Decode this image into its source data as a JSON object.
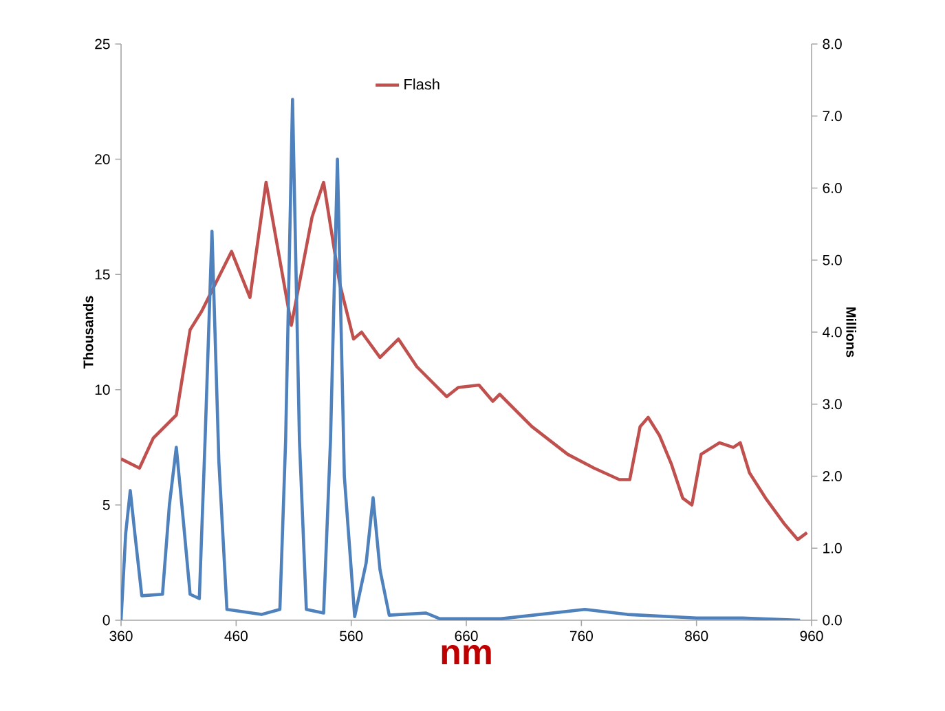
{
  "chart_data": {
    "type": "line",
    "xlabel": "nm",
    "ylabel": "Thousands",
    "y2label": "Millions",
    "xlim": [
      360,
      960
    ],
    "xticks": [
      360,
      460,
      560,
      660,
      760,
      860,
      960
    ],
    "ylim": [
      0,
      25
    ],
    "yticks": [
      0,
      5,
      10,
      15,
      20,
      25
    ],
    "y2lim": [
      0,
      8
    ],
    "y2ticks": [
      {
        "value": 0,
        "label": "0.0"
      },
      {
        "value": 1,
        "label": "1.0"
      },
      {
        "value": 2,
        "label": "2.0"
      },
      {
        "value": 3,
        "label": "3.0"
      },
      {
        "value": 4,
        "label": "4.0"
      },
      {
        "value": 5,
        "label": "5.0"
      },
      {
        "value": 6,
        "label": "6.0"
      },
      {
        "value": 7,
        "label": "7.0"
      },
      {
        "value": 8,
        "label": "8.0"
      }
    ],
    "legend": "top",
    "marker": "none",
    "grid": false,
    "series": [
      {
        "name": "Flash",
        "color": "#c0504d",
        "x": [
          360,
          376,
          388,
          408,
          420,
          430,
          446,
          456,
          472,
          486,
          508,
          526,
          536,
          550,
          562,
          569,
          585,
          601,
          617,
          643,
          653,
          671,
          683,
          689,
          697,
          717,
          748,
          771,
          793,
          802,
          811,
          818,
          828,
          838,
          848,
          856,
          864,
          880,
          892,
          898,
          906,
          920,
          936,
          948,
          956
        ],
        "values": [
          7.0,
          6.6,
          7.9,
          8.9,
          12.6,
          13.4,
          15.0,
          16.0,
          14.0,
          19.0,
          12.8,
          17.5,
          19.0,
          14.6,
          12.2,
          12.5,
          11.4,
          12.2,
          11.0,
          9.7,
          10.1,
          10.2,
          9.5,
          9.8,
          9.4,
          8.4,
          7.2,
          6.6,
          6.1,
          6.1,
          8.4,
          8.8,
          8.0,
          6.8,
          5.3,
          5.0,
          7.2,
          7.7,
          7.5,
          7.7,
          6.4,
          5.3,
          4.2,
          3.5,
          3.8
        ]
      },
      {
        "color": "#4f81bd",
        "axis": "y2",
        "x": [
          360,
          364,
          368,
          372,
          378,
          396,
          402,
          408,
          414,
          420,
          428,
          433,
          439,
          445,
          452,
          482,
          498,
          503,
          509,
          515,
          521,
          536,
          542,
          548,
          554,
          563,
          573,
          579,
          585,
          593,
          625,
          637,
          690,
          763,
          800,
          860,
          900,
          950
        ],
        "values": [
          0,
          1.2,
          1.8,
          1.2,
          0.34,
          0.36,
          1.6,
          2.4,
          1.4,
          0.36,
          0.3,
          2.5,
          5.4,
          2.2,
          0.15,
          0.08,
          0.15,
          2.5,
          7.23,
          2.5,
          0.15,
          0.1,
          2.5,
          6.4,
          2.0,
          0.05,
          0.8,
          1.7,
          0.7,
          0.07,
          0.1,
          0.02,
          0.02,
          0.15,
          0.08,
          0.03,
          0.03,
          0
        ]
      }
    ]
  }
}
